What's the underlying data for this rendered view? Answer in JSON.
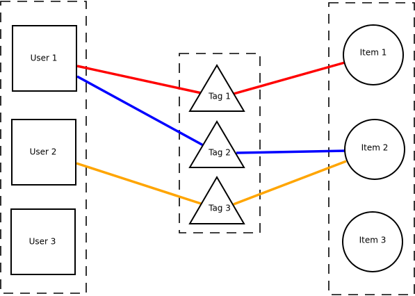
{
  "users": [
    {
      "id": "user1",
      "label": "User 1"
    },
    {
      "id": "user2",
      "label": "User 2"
    },
    {
      "id": "user3",
      "label": "User 3"
    }
  ],
  "tags": [
    {
      "id": "tag1",
      "label": "Tag 1"
    },
    {
      "id": "tag2",
      "label": "Tag 2"
    },
    {
      "id": "tag3",
      "label": "Tag 3"
    }
  ],
  "items": [
    {
      "id": "item1",
      "label": "Item 1"
    },
    {
      "id": "item2",
      "label": "Item 2"
    },
    {
      "id": "item3",
      "label": "Item 3"
    }
  ],
  "edges": [
    {
      "from": "user1",
      "to": "tag1",
      "color": "#ff0000"
    },
    {
      "from": "tag1",
      "to": "item1",
      "color": "#ff0000"
    },
    {
      "from": "user1",
      "to": "tag2",
      "color": "#0000ff"
    },
    {
      "from": "tag2",
      "to": "item2",
      "color": "#0000ff"
    },
    {
      "from": "user2",
      "to": "tag3",
      "color": "#ffa500"
    },
    {
      "from": "tag3",
      "to": "item2",
      "color": "#ffa500"
    }
  ]
}
